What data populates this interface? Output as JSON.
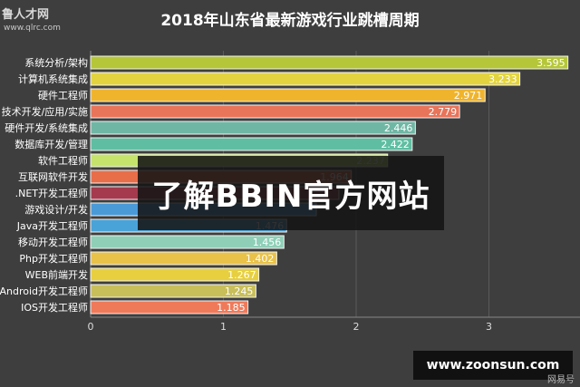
{
  "watermark": {
    "brand": "鲁人才网",
    "url": "www.qlrc.com"
  },
  "overlay": {
    "headline": "了解BBIN官方网站",
    "site": "www.zoonsun.com",
    "corner": "网易号"
  },
  "chart_data": {
    "type": "bar",
    "orientation": "horizontal",
    "title": "2018年山东省最新游戏行业跳槽周期",
    "xlim": [
      0,
      3.5
    ],
    "xticks": [
      0,
      1,
      2,
      3
    ],
    "grid": true,
    "categories": [
      "系统分析/架构",
      "计算机系统集成",
      "硬件工程师",
      "技术开发/应用/实施",
      "硬件开发/系统集成",
      "数据库开发/管理",
      "软件工程师",
      "互联网软件开发",
      ".NET开发工程师",
      "游戏设计/开发",
      "Java开发工程师",
      "移动开发工程师",
      "Php开发工程师",
      "WEB前端开发",
      "Android开发工程师",
      "IOS开发工程师"
    ],
    "values": [
      3.595,
      3.233,
      2.971,
      2.779,
      2.446,
      2.422,
      2.237,
      1.964,
      1.87,
      1.7,
      1.476,
      1.456,
      1.402,
      1.267,
      1.245,
      1.185
    ],
    "labels": [
      "3.595",
      "3.233",
      "2.971",
      "2.779",
      "2.446",
      "2.422",
      "2.237",
      "1.964",
      "",
      "",
      "1.476",
      "1.456",
      "1.402",
      "1.267",
      "1.245",
      "1.185"
    ],
    "colors": [
      "#b5c639",
      "#e3d43f",
      "#f0b42c",
      "#e8745a",
      "#6fb7a4",
      "#5fbea1",
      "#c6e36c",
      "#e86e4a",
      "#a53a4e",
      "#4a9ad8",
      "#4aa3d8",
      "#8fcfb8",
      "#e9c24a",
      "#e7cf3f",
      "#c8be5a",
      "#ef7a5a"
    ]
  }
}
